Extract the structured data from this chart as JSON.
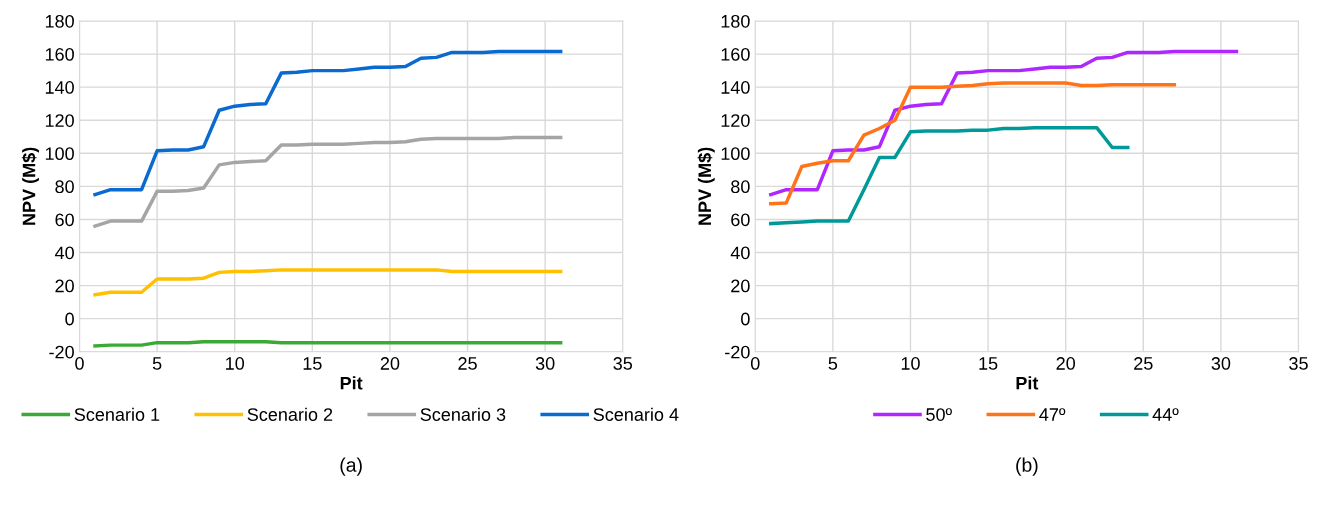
{
  "chart_data": [
    {
      "type": "line",
      "xlabel": "Pit",
      "ylabel": "NPV (M$)",
      "annotations": [
        "(a)"
      ],
      "xlim": [
        0,
        35
      ],
      "xticks": [
        0,
        5,
        10,
        15,
        20,
        25,
        30,
        35
      ],
      "ylim": [
        -20,
        180
      ],
      "yticks": [
        -20,
        0,
        20,
        40,
        60,
        80,
        100,
        120,
        140,
        160,
        180
      ],
      "grid": true,
      "legend": "bottom",
      "marker": "none",
      "line_style": "solid",
      "x": [
        1,
        2,
        3,
        4,
        5,
        6,
        7,
        8,
        9,
        10,
        11,
        12,
        13,
        14,
        15,
        16,
        17,
        18,
        19,
        20,
        21,
        22,
        23,
        24,
        25,
        26,
        27,
        28,
        29,
        30,
        31
      ],
      "series": [
        {
          "name": "Scenario 1",
          "color": "#3aa935",
          "values": [
            -16.5,
            -16,
            -16,
            -16,
            -14.5,
            -14.5,
            -14.5,
            -14,
            -14,
            -14,
            -14,
            -14,
            -14.5,
            -14.5,
            -14.5,
            -14.5,
            -14.5,
            -14.5,
            -14.5,
            -14.5,
            -14.5,
            -14.5,
            -14.5,
            -14.5,
            -14.5,
            -14.5,
            -14.5,
            -14.5,
            -14.5,
            -14.5,
            -14.5
          ]
        },
        {
          "name": "Scenario 2",
          "color": "#ffc000",
          "values": [
            14.5,
            16,
            16,
            16,
            24,
            24,
            24,
            24.5,
            28,
            28.5,
            28.5,
            29,
            29.5,
            29.5,
            29.5,
            29.5,
            29.5,
            29.5,
            29.5,
            29.5,
            29.5,
            29.5,
            29.5,
            28.5,
            28.5,
            28.5,
            28.5,
            28.5,
            28.5,
            28.5,
            28.5
          ]
        },
        {
          "name": "Scenario 3",
          "color": "#a5a5a5",
          "values": [
            56,
            59,
            59,
            59,
            77,
            77,
            77.5,
            79,
            93,
            94.5,
            95,
            95.5,
            105,
            105,
            105.5,
            105.5,
            105.5,
            106,
            106.5,
            106.5,
            107,
            108.5,
            109,
            109,
            109,
            109,
            109,
            109.5,
            109.5,
            109.5,
            109.5
          ]
        },
        {
          "name": "Scenario 4",
          "color": "#0a6ad0",
          "values": [
            75,
            78,
            78,
            78,
            101.5,
            102,
            102,
            104,
            126,
            128.5,
            129.5,
            130,
            148.5,
            149,
            150,
            150,
            150,
            151,
            152,
            152,
            152.5,
            157.5,
            158,
            161,
            161,
            161,
            161.5,
            161.5,
            161.5,
            161.5,
            161.5
          ]
        }
      ]
    },
    {
      "type": "line",
      "xlabel": "Pit",
      "ylabel": "NPV (M$)",
      "annotations": [
        "(b)"
      ],
      "xlim": [
        0,
        35
      ],
      "xticks": [
        0,
        5,
        10,
        15,
        20,
        25,
        30,
        35
      ],
      "ylim": [
        -20,
        180
      ],
      "yticks": [
        -20,
        0,
        20,
        40,
        60,
        80,
        100,
        120,
        140,
        160,
        180
      ],
      "grid": true,
      "legend": "bottom",
      "marker": "none",
      "line_style": "solid",
      "series": [
        {
          "name": "50º",
          "color": "#b026ff",
          "x": [
            1,
            2,
            3,
            4,
            5,
            6,
            7,
            8,
            9,
            10,
            11,
            12,
            13,
            14,
            15,
            16,
            17,
            18,
            19,
            20,
            21,
            22,
            23,
            24,
            25,
            26,
            27,
            28,
            29,
            30,
            31
          ],
          "values": [
            75,
            78,
            78,
            78,
            101.5,
            102,
            102,
            104,
            126,
            128.5,
            129.5,
            130,
            148.5,
            149,
            150,
            150,
            150,
            151,
            152,
            152,
            152.5,
            157.5,
            158,
            161,
            161,
            161,
            161.5,
            161.5,
            161.5,
            161.5,
            161.5
          ]
        },
        {
          "name": "47º",
          "color": "#ff7418",
          "x": [
            1,
            2,
            3,
            4,
            5,
            6,
            7,
            8,
            9,
            10,
            11,
            12,
            13,
            14,
            15,
            16,
            17,
            18,
            19,
            20,
            21,
            22,
            23,
            24,
            25,
            26,
            27
          ],
          "values": [
            69.5,
            70,
            92,
            94,
            95.5,
            95.5,
            111,
            115,
            120,
            140,
            140,
            140,
            140.5,
            141,
            142,
            142.5,
            142.5,
            142.5,
            142.5,
            142.5,
            141,
            141,
            141.5,
            141.5,
            141.5,
            141.5,
            141.5
          ]
        },
        {
          "name": "44º",
          "color": "#009999",
          "x": [
            1,
            2,
            3,
            4,
            5,
            6,
            7,
            8,
            9,
            10,
            11,
            12,
            13,
            14,
            15,
            16,
            17,
            18,
            19,
            20,
            21,
            22,
            23,
            24
          ],
          "values": [
            57.5,
            58,
            58.5,
            59,
            59,
            59,
            78,
            97.5,
            97.5,
            113,
            113.5,
            113.5,
            113.5,
            114,
            114,
            115,
            115,
            115.5,
            115.5,
            115.5,
            115.5,
            115.5,
            103.5,
            103.5
          ]
        }
      ]
    }
  ]
}
